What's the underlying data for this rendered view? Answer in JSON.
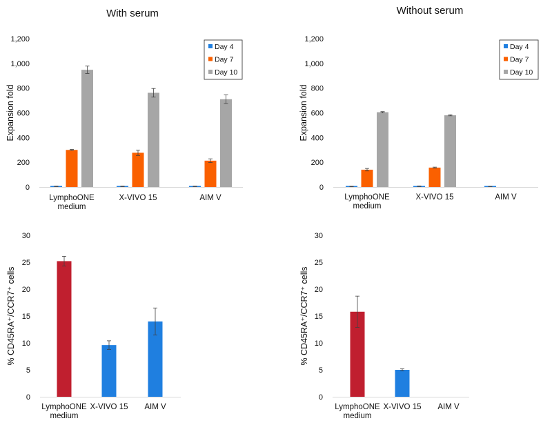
{
  "chart_data": [
    {
      "type": "bar",
      "title": "With serum",
      "ylabel": "Expansion fold",
      "xlabel": "",
      "ylim": [
        0,
        1200
      ],
      "yticks": [
        "0",
        "200",
        "400",
        "600",
        "800",
        "1,000",
        "1,200"
      ],
      "categories": [
        "LymphoONE|medium",
        "X-VIVO 15",
        "AIM V"
      ],
      "legend_position": "top-right",
      "series": [
        {
          "name": "Day 4",
          "color": "#1f7fe0",
          "values": [
            5,
            5,
            5
          ],
          "errors": [
            2,
            2,
            2
          ]
        },
        {
          "name": "Day 7",
          "color": "#fa6000",
          "values": [
            300,
            277,
            213
          ],
          "errors": [
            4,
            22,
            15
          ]
        },
        {
          "name": "Day 10",
          "color": "#a6a6a6",
          "values": [
            948,
            762,
            710
          ],
          "errors": [
            30,
            35,
            35
          ]
        }
      ]
    },
    {
      "type": "bar",
      "title": "Without serum",
      "ylabel": "Expansion fold",
      "xlabel": "",
      "ylim": [
        0,
        1200
      ],
      "yticks": [
        "0",
        "200",
        "400",
        "600",
        "800",
        "1,000",
        "1,200"
      ],
      "categories": [
        "LymphoONE|medium",
        "X-VIVO 15",
        "AIM V"
      ],
      "legend_position": "top-right",
      "series": [
        {
          "name": "Day 4",
          "color": "#1f7fe0",
          "values": [
            4,
            6,
            4
          ],
          "errors": [
            2,
            2,
            1
          ]
        },
        {
          "name": "Day 7",
          "color": "#fa6000",
          "values": [
            140,
            157,
            null
          ],
          "errors": [
            10,
            4,
            null
          ]
        },
        {
          "name": "Day 10",
          "color": "#a6a6a6",
          "values": [
            605,
            580,
            null
          ],
          "errors": [
            5,
            4,
            null
          ]
        }
      ]
    },
    {
      "type": "bar",
      "title": "",
      "ylabel": "% CD45RA⁺/CCR7⁺ cells",
      "xlabel": "",
      "ylim": [
        0,
        30
      ],
      "yticks": [
        "0",
        "5",
        "10",
        "15",
        "20",
        "25",
        "30"
      ],
      "categories": [
        "LymphoONE|medium",
        "X-VIVO 15",
        "AIM V"
      ],
      "colors": [
        "#c01f2f",
        "#1f7fe0",
        "#1f7fe0"
      ],
      "values": [
        25.2,
        9.6,
        14.0
      ],
      "errors": [
        0.9,
        0.8,
        2.5
      ]
    },
    {
      "type": "bar",
      "title": "",
      "ylabel": "% CD45RA⁺/CCR7⁺ cells",
      "xlabel": "",
      "ylim": [
        0,
        30
      ],
      "yticks": [
        "0",
        "5",
        "10",
        "15",
        "20",
        "25",
        "30"
      ],
      "categories": [
        "LymphoONE|medium",
        "X-VIVO 15",
        "AIM V"
      ],
      "colors": [
        "#c01f2f",
        "#1f7fe0",
        "#1f7fe0"
      ],
      "values": [
        15.8,
        5.0,
        null
      ],
      "errors": [
        2.9,
        0.2,
        null
      ]
    }
  ]
}
